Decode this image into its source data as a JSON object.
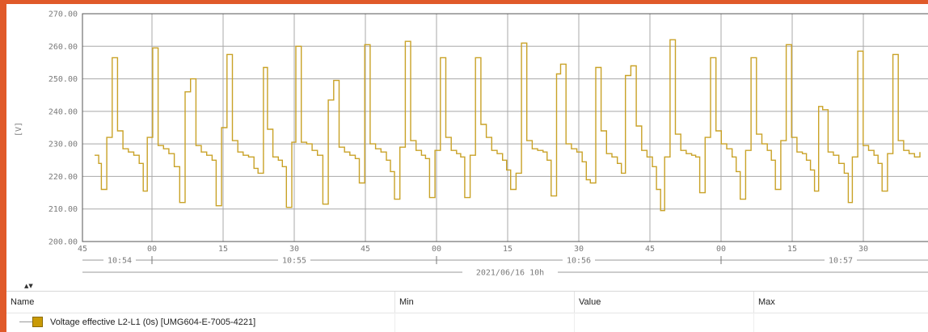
{
  "chart_data": {
    "type": "line",
    "line_style": "step",
    "color": "#c9a227",
    "ylabel": "[V]",
    "y_ticks": [
      "200.00",
      "210.00",
      "220.00",
      "230.00",
      "240.00",
      "250.00",
      "260.00",
      "270.00"
    ],
    "ylim": [
      200,
      270
    ],
    "x_ticks": [
      "45",
      "00",
      "15",
      "30",
      "45",
      "00",
      "15",
      "30",
      "45",
      "00",
      "15",
      "30"
    ],
    "minute_labels": [
      "10:54",
      "10:55",
      "10:56",
      "10:57"
    ],
    "hour_label": "2021/06/16 10h",
    "grid": true,
    "series": [
      {
        "points": [
          [
            49.5,
            226.5
          ],
          [
            51,
            224
          ],
          [
            52,
            216
          ],
          [
            54,
            232
          ],
          [
            56,
            256.5
          ],
          [
            58,
            234
          ],
          [
            60,
            228.5
          ],
          [
            62,
            227.5
          ],
          [
            64,
            226.5
          ],
          [
            66,
            224
          ],
          [
            67.5,
            215.5
          ],
          [
            69,
            232
          ],
          [
            71,
            259.5
          ],
          [
            73,
            229.5
          ],
          [
            75,
            228.5
          ],
          [
            77,
            227
          ],
          [
            79,
            223
          ],
          [
            81,
            212
          ],
          [
            83,
            246
          ],
          [
            85,
            250
          ],
          [
            87,
            229.5
          ],
          [
            89,
            227.5
          ],
          [
            91,
            226.5
          ],
          [
            93,
            225
          ],
          [
            94.5,
            211
          ],
          [
            96.5,
            235
          ],
          [
            98.5,
            257.5
          ],
          [
            100.5,
            231
          ],
          [
            102.5,
            227.5
          ],
          [
            104.5,
            226.5
          ],
          [
            106.5,
            226
          ],
          [
            108.5,
            222.5
          ],
          [
            110,
            221
          ],
          [
            112,
            253.5
          ],
          [
            113.5,
            234.5
          ],
          [
            115.5,
            226
          ],
          [
            117.5,
            225
          ],
          [
            119,
            223
          ],
          [
            120.5,
            210.5
          ],
          [
            122.5,
            230.5
          ],
          [
            124,
            260
          ],
          [
            126,
            230.5
          ],
          [
            128,
            230
          ],
          [
            130,
            228
          ],
          [
            132,
            226.5
          ],
          [
            134,
            211.5
          ],
          [
            136,
            243.5
          ],
          [
            138,
            249.5
          ],
          [
            140,
            229
          ],
          [
            142,
            227.5
          ],
          [
            144,
            226.5
          ],
          [
            146,
            225.5
          ],
          [
            147.5,
            218
          ],
          [
            149.5,
            260.5
          ],
          [
            151.5,
            230
          ],
          [
            153.5,
            228.5
          ],
          [
            155.5,
            227.5
          ],
          [
            157.5,
            225
          ],
          [
            159,
            221.5
          ],
          [
            160.5,
            213
          ],
          [
            162.5,
            229
          ],
          [
            164.5,
            261.5
          ],
          [
            166.5,
            231
          ],
          [
            168.5,
            228
          ],
          [
            170.5,
            226.5
          ],
          [
            172,
            225.5
          ],
          [
            173.5,
            213.5
          ],
          [
            175.5,
            228
          ],
          [
            177.5,
            256.5
          ],
          [
            179.5,
            232
          ],
          [
            181.5,
            228
          ],
          [
            183.5,
            227
          ],
          [
            185,
            226
          ],
          [
            186.5,
            213.5
          ],
          [
            188.5,
            226.5
          ],
          [
            190.5,
            256.5
          ],
          [
            192.5,
            236
          ],
          [
            194.5,
            232
          ],
          [
            196.5,
            228
          ],
          [
            198.5,
            227
          ],
          [
            200.5,
            225
          ],
          [
            202,
            222
          ],
          [
            203.5,
            216
          ],
          [
            205.5,
            221
          ],
          [
            207.5,
            261
          ],
          [
            209.5,
            231
          ],
          [
            211.5,
            228.5
          ],
          [
            213.5,
            228
          ],
          [
            215.5,
            227.5
          ],
          [
            217,
            225
          ],
          [
            218.5,
            214
          ],
          [
            220.5,
            251.5
          ],
          [
            222,
            254.5
          ],
          [
            224,
            230
          ],
          [
            226,
            228.5
          ],
          [
            228,
            227.5
          ],
          [
            230,
            224.5
          ],
          [
            231.5,
            219
          ],
          [
            233,
            218
          ],
          [
            235,
            253.5
          ],
          [
            237,
            234
          ],
          [
            239,
            227
          ],
          [
            241,
            226
          ],
          [
            243,
            224
          ],
          [
            244.5,
            221
          ],
          [
            246,
            251
          ],
          [
            248,
            254
          ],
          [
            250,
            235.5
          ],
          [
            252,
            228
          ],
          [
            254,
            226
          ],
          [
            256,
            223
          ],
          [
            257.5,
            216
          ],
          [
            259,
            209.5
          ],
          [
            260.5,
            226
          ],
          [
            262.5,
            262
          ],
          [
            264.5,
            233
          ],
          [
            266.5,
            228
          ],
          [
            268.5,
            227
          ],
          [
            270.5,
            226.5
          ],
          [
            272,
            226
          ],
          [
            273.5,
            215
          ],
          [
            275.5,
            232
          ],
          [
            277.5,
            256.5
          ],
          [
            279.5,
            234
          ],
          [
            281.5,
            230
          ],
          [
            283.5,
            228.5
          ],
          [
            285.5,
            226
          ],
          [
            287,
            221.5
          ],
          [
            288.5,
            213
          ],
          [
            290.5,
            228
          ],
          [
            292.5,
            256.5
          ],
          [
            294.5,
            233
          ],
          [
            296.5,
            230
          ],
          [
            298.5,
            228
          ],
          [
            300,
            225
          ],
          [
            301.5,
            216
          ],
          [
            303.5,
            231
          ],
          [
            305.5,
            260.5
          ],
          [
            307.5,
            232
          ],
          [
            309.5,
            227.5
          ],
          [
            311.5,
            227
          ],
          [
            313,
            225
          ],
          [
            314.5,
            222
          ],
          [
            316,
            215.5
          ],
          [
            317.5,
            241.5
          ],
          [
            319,
            240.5
          ],
          [
            321,
            227.5
          ],
          [
            323,
            226.5
          ],
          [
            325,
            224
          ],
          [
            327,
            221
          ],
          [
            328.5,
            212
          ],
          [
            330,
            226
          ],
          [
            332,
            258.5
          ],
          [
            334,
            229.5
          ],
          [
            336,
            228
          ],
          [
            338,
            226.5
          ],
          [
            339.5,
            224
          ],
          [
            341,
            215.5
          ],
          [
            343,
            227
          ],
          [
            345,
            257.5
          ],
          [
            347,
            231
          ],
          [
            349,
            228
          ],
          [
            351,
            227
          ],
          [
            353,
            226
          ],
          [
            355,
            227.5
          ]
        ]
      }
    ]
  },
  "legend": {
    "headers": {
      "name": "Name",
      "min": "Min",
      "value": "Value",
      "max": "Max"
    },
    "series_label": "Voltage effective L2-L1 (0s) [UMG604-E-7005-4221]",
    "swatch_color": "#c99a06"
  },
  "colors": {
    "frame": "#e05a2a",
    "grid": "#a8a8a8",
    "plot_border": "#555555",
    "axis_text": "#7a7a7a"
  }
}
